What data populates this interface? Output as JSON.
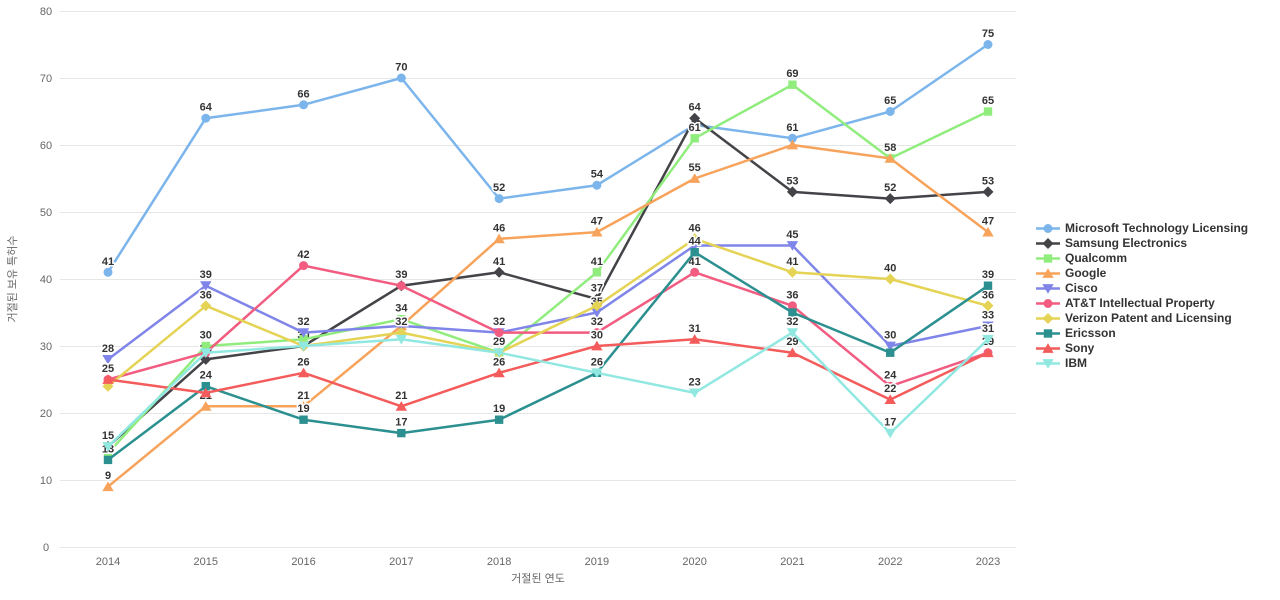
{
  "chart_data": {
    "type": "line",
    "title": "",
    "xlabel": "거절된 연도",
    "ylabel": "거절된 보유 특허수",
    "x_categories": [
      "2014",
      "2015",
      "2016",
      "2017",
      "2018",
      "2019",
      "2020",
      "2021",
      "2022",
      "2023"
    ],
    "y_ticks": [
      0,
      10,
      20,
      30,
      40,
      50,
      60,
      70,
      80
    ],
    "ylim": [
      0,
      80
    ],
    "grid": true,
    "legend_position": "right-middle",
    "gridline_color": "#e6e6e6",
    "axis_text_color": "#666666",
    "data_label_color": "#333333",
    "series": [
      {
        "name": "Microsoft Technology Licensing",
        "slug": "microsoft-technology-licensing",
        "color": "#7cb5ec",
        "marker": "circle",
        "values": [
          41,
          64,
          66,
          70,
          52,
          54,
          63,
          61,
          65,
          75
        ],
        "hidden_value_labels": [
          6
        ]
      },
      {
        "name": "Samsung Electronics",
        "slug": "samsung-electronics",
        "color": "#434348",
        "marker": "diamond",
        "values": [
          15,
          28,
          30,
          39,
          41,
          37,
          64,
          53,
          52,
          53
        ],
        "hidden_value_labels": []
      },
      {
        "name": "Qualcomm",
        "slug": "qualcomm",
        "color": "#90ed7d",
        "marker": "square",
        "values": [
          14,
          30,
          31,
          34,
          29,
          41,
          61,
          69,
          58,
          65
        ],
        "hidden_value_labels": [
          0,
          2
        ]
      },
      {
        "name": "Google",
        "slug": "google",
        "color": "#f7a35c",
        "marker": "triangle",
        "values": [
          9,
          21,
          21,
          33,
          46,
          47,
          55,
          60,
          58,
          47
        ],
        "hidden_value_labels": [
          3,
          7,
          8
        ]
      },
      {
        "name": "Cisco",
        "slug": "cisco",
        "color": "#8085e9",
        "marker": "triangle-down",
        "values": [
          28,
          39,
          32,
          33,
          32,
          35,
          45,
          45,
          30,
          33
        ],
        "hidden_value_labels": [
          3,
          6
        ]
      },
      {
        "name": "AT&T Intellectual Property",
        "slug": "att-intellectual-property",
        "color": "#f15c80",
        "marker": "circle",
        "values": [
          25,
          29,
          42,
          39,
          32,
          32,
          41,
          36,
          24,
          29
        ],
        "hidden_value_labels": [
          1,
          3,
          4
        ]
      },
      {
        "name": "Verizon Patent and Licensing",
        "slug": "verizon-patent-and-licensing",
        "color": "#e4d354",
        "marker": "diamond",
        "values": [
          24,
          36,
          30,
          32,
          29,
          36,
          46,
          41,
          40,
          36
        ],
        "hidden_value_labels": [
          0,
          2,
          4,
          5
        ]
      },
      {
        "name": "Ericsson",
        "slug": "ericsson",
        "color": "#2b908f",
        "marker": "square",
        "values": [
          13,
          24,
          19,
          17,
          19,
          26,
          44,
          35,
          29,
          39
        ],
        "hidden_value_labels": [
          7,
          8
        ]
      },
      {
        "name": "Sony",
        "slug": "sony",
        "color": "#f45b5b",
        "marker": "triangle",
        "values": [
          25,
          23,
          26,
          21,
          26,
          30,
          31,
          29,
          22,
          29
        ],
        "hidden_value_labels": [
          0,
          1,
          9
        ]
      },
      {
        "name": "IBM",
        "slug": "ibm",
        "color": "#91e8e1",
        "marker": "triangle-down",
        "values": [
          15,
          29,
          30,
          31,
          29,
          26,
          23,
          32,
          17,
          31
        ],
        "hidden_value_labels": [
          0,
          1,
          2,
          3,
          4,
          5
        ]
      }
    ]
  }
}
